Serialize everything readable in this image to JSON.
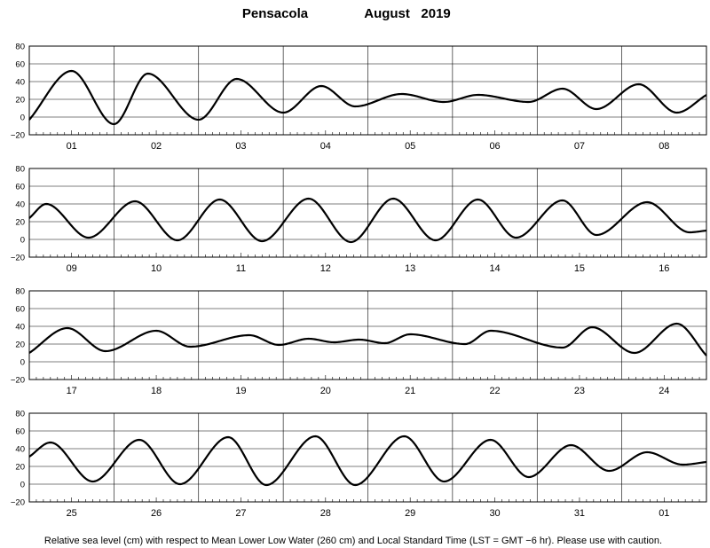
{
  "chart_data": {
    "type": "line",
    "title_location": "Pensacola",
    "title_period": "August   2019",
    "footnote": "Relative sea level (cm) with respect to Mean Lower Low Water (260 cm) and Local Standard Time (LST = GMT −6 hr). Please use with caution.",
    "ylim": [
      -20,
      80
    ],
    "yticks": [
      -20,
      0,
      20,
      40,
      60,
      80
    ],
    "ytick_labels": [
      "−20",
      "0",
      "20",
      "40",
      "60",
      "80"
    ],
    "grid": true,
    "x_unit": "day of month (LST)",
    "panels": [
      {
        "days": [
          "01",
          "02",
          "03",
          "04",
          "05",
          "06",
          "07",
          "08"
        ],
        "x": [
          0,
          0.5,
          1,
          1.4,
          2,
          2.45,
          3,
          3.45,
          3.85,
          4.4,
          4.9,
          5.3,
          5.9,
          6.3,
          6.7,
          7.2,
          7.65,
          8.0
        ],
        "y": [
          -3,
          52,
          -8,
          49,
          -3,
          43,
          5,
          35,
          12,
          26,
          17,
          25,
          17,
          32,
          9,
          37,
          5,
          25
        ]
      },
      {
        "days": [
          "09",
          "10",
          "11",
          "12",
          "13",
          "14",
          "15",
          "16"
        ],
        "x": [
          0,
          0.2,
          0.7,
          1.25,
          1.75,
          2.25,
          2.75,
          3.3,
          3.8,
          4.3,
          4.8,
          5.3,
          5.75,
          6.3,
          6.7,
          7.3,
          7.8,
          8.0
        ],
        "y": [
          24,
          40,
          2,
          43,
          -1,
          45,
          -2,
          46,
          -3,
          46,
          -1,
          45,
          2,
          44,
          5,
          42,
          8,
          10
        ]
      },
      {
        "days": [
          "17",
          "18",
          "19",
          "20",
          "21",
          "22",
          "23",
          "24"
        ],
        "x": [
          0,
          0.45,
          0.9,
          1.5,
          1.9,
          2.6,
          2.95,
          3.3,
          3.6,
          3.9,
          4.2,
          4.5,
          5.15,
          5.45,
          6.3,
          6.65,
          7.15,
          7.65,
          8.0
        ],
        "y": [
          10,
          38,
          12,
          35,
          17,
          30,
          19,
          26,
          22,
          25,
          21,
          31,
          20,
          35,
          16,
          39,
          10,
          43,
          7
        ]
      },
      {
        "days": [
          "25",
          "26",
          "27",
          "28",
          "29",
          "30",
          "31",
          "01"
        ],
        "x": [
          0,
          0.25,
          0.75,
          1.3,
          1.78,
          2.35,
          2.8,
          3.38,
          3.85,
          4.43,
          4.9,
          5.45,
          5.9,
          6.4,
          6.85,
          7.3,
          7.72,
          8.0
        ],
        "y": [
          31,
          47,
          3,
          50,
          0,
          53,
          -1,
          54,
          -1,
          54,
          3,
          50,
          8,
          44,
          15,
          36,
          22,
          25
        ]
      }
    ]
  }
}
